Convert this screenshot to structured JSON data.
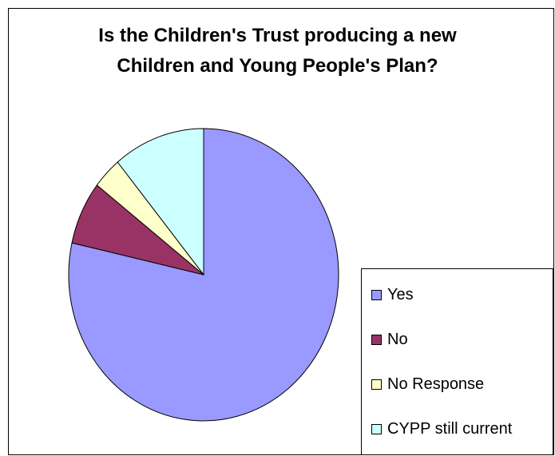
{
  "chart_data": {
    "type": "pie",
    "title_lines": [
      "Is the Children's Trust producing a new",
      "Children and Young People's Plan?"
    ],
    "categories": [
      "Yes",
      "No",
      "No Response",
      "CYPP still current"
    ],
    "values": [
      78.5,
      7,
      3.5,
      11
    ],
    "colors": [
      "#9999ff",
      "#993366",
      "#ffffcc",
      "#ccffff"
    ],
    "legend_position": "bottom-right"
  }
}
